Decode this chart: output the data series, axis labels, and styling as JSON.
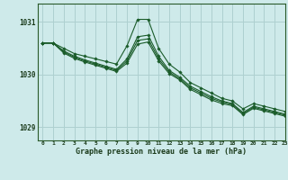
{
  "title": "Graphe pression niveau de la mer (hPa)",
  "bg_color": "#ceeaea",
  "grid_color": "#aed0d0",
  "line_color": "#1a5c2a",
  "xlim": [
    -0.5,
    23
  ],
  "ylim": [
    1028.75,
    1031.35
  ],
  "yticks": [
    1029,
    1030,
    1031
  ],
  "xticks": [
    0,
    1,
    2,
    3,
    4,
    5,
    6,
    7,
    8,
    9,
    10,
    11,
    12,
    13,
    14,
    15,
    16,
    17,
    18,
    19,
    20,
    21,
    22,
    23
  ],
  "lines": [
    {
      "x": [
        0,
        1,
        2,
        3,
        4,
        5,
        6,
        7,
        8,
        9,
        10,
        11,
        12,
        13,
        14,
        15,
        16,
        17,
        18,
        19,
        20,
        21,
        22,
        23
      ],
      "y": [
        1030.6,
        1030.6,
        1030.5,
        1030.4,
        1030.35,
        1030.3,
        1030.25,
        1030.2,
        1030.55,
        1031.05,
        1031.05,
        1030.5,
        1030.2,
        1030.05,
        1029.85,
        1029.75,
        1029.65,
        1029.55,
        1029.5,
        1029.35,
        1029.45,
        1029.4,
        1029.35,
        1029.3
      ]
    },
    {
      "x": [
        0,
        1,
        2,
        3,
        4,
        5,
        6,
        7,
        8,
        9,
        10,
        11,
        12,
        13,
        14,
        15,
        16,
        17,
        18,
        19,
        20,
        21,
        22,
        23
      ],
      "y": [
        1030.6,
        1030.6,
        1030.45,
        1030.35,
        1030.28,
        1030.22,
        1030.16,
        1030.1,
        1030.3,
        1030.72,
        1030.75,
        1030.35,
        1030.08,
        1029.95,
        1029.78,
        1029.68,
        1029.58,
        1029.5,
        1029.45,
        1029.28,
        1029.4,
        1029.35,
        1029.3,
        1029.25
      ]
    },
    {
      "x": [
        0,
        1,
        2,
        3,
        4,
        5,
        6,
        7,
        8,
        9,
        10,
        11,
        12,
        13,
        14,
        15,
        16,
        17,
        18,
        19,
        20,
        21,
        22,
        23
      ],
      "y": [
        1030.6,
        1030.6,
        1030.43,
        1030.33,
        1030.26,
        1030.2,
        1030.14,
        1030.08,
        1030.26,
        1030.65,
        1030.68,
        1030.3,
        1030.05,
        1029.92,
        1029.75,
        1029.65,
        1029.55,
        1029.48,
        1029.43,
        1029.26,
        1029.38,
        1029.33,
        1029.28,
        1029.23
      ]
    },
    {
      "x": [
        0,
        1,
        2,
        3,
        4,
        5,
        6,
        7,
        8,
        9,
        10,
        11,
        12,
        13,
        14,
        15,
        16,
        17,
        18,
        19,
        20,
        21,
        22,
        23
      ],
      "y": [
        1030.6,
        1030.6,
        1030.41,
        1030.31,
        1030.24,
        1030.18,
        1030.12,
        1030.06,
        1030.22,
        1030.58,
        1030.62,
        1030.26,
        1030.02,
        1029.9,
        1029.72,
        1029.62,
        1029.52,
        1029.45,
        1029.41,
        1029.24,
        1029.36,
        1029.31,
        1029.26,
        1029.21
      ]
    }
  ]
}
